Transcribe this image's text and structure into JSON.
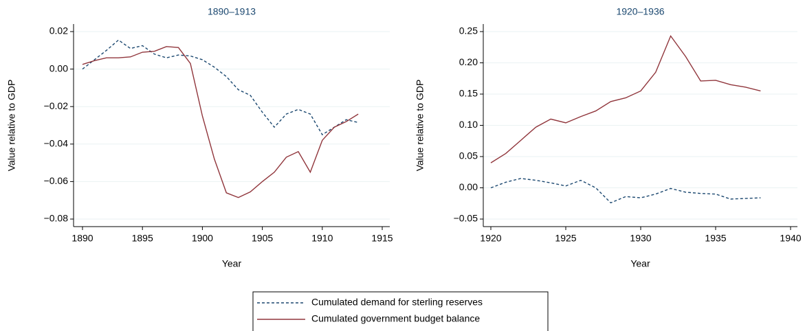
{
  "chart_data": [
    {
      "type": "line",
      "title": "1890–1913",
      "xlabel": "Year",
      "ylabel": "Value relative to GDP",
      "x": [
        1890,
        1891,
        1892,
        1893,
        1894,
        1895,
        1896,
        1897,
        1898,
        1899,
        1900,
        1901,
        1902,
        1903,
        1904,
        1905,
        1906,
        1907,
        1908,
        1909,
        1910,
        1911,
        1912,
        1913
      ],
      "series": [
        {
          "name": "Cumulated demand for sterling reserves",
          "color": "#1a476f",
          "dash": true,
          "values": [
            0.0,
            0.005,
            0.01,
            0.0155,
            0.011,
            0.0125,
            0.008,
            0.006,
            0.0075,
            0.007,
            0.005,
            0.001,
            -0.004,
            -0.011,
            -0.014,
            -0.023,
            -0.031,
            -0.024,
            -0.0215,
            -0.024,
            -0.035,
            -0.031,
            -0.027,
            -0.0285
          ]
        },
        {
          "name": "Cumulated government budget balance",
          "color": "#90353b",
          "dash": false,
          "values": [
            0.0025,
            0.0045,
            0.006,
            0.006,
            0.0065,
            0.009,
            0.0095,
            0.012,
            0.0115,
            0.003,
            -0.025,
            -0.048,
            -0.066,
            -0.0685,
            -0.0655,
            -0.06,
            -0.055,
            -0.047,
            -0.044,
            -0.055,
            -0.038,
            -0.031,
            -0.028,
            -0.024
          ]
        }
      ],
      "xlim": [
        1890,
        1915
      ],
      "xticks": [
        1890,
        1895,
        1900,
        1905,
        1910,
        1915
      ],
      "ylim": [
        -0.08,
        0.02
      ],
      "yticks": [
        0.02,
        {
          "value": 0,
          "label": "0.00"
        },
        {
          "value": -0.02,
          "label": "−0.02"
        },
        {
          "value": -0.04,
          "label": "−0.04"
        },
        {
          "value": -0.06,
          "label": "−0.06"
        },
        {
          "value": -0.08,
          "label": "−0.08"
        }
      ],
      "grid": true
    },
    {
      "type": "line",
      "title": "1920–1936",
      "xlabel": "Year",
      "ylabel": "Value relative to GDP",
      "x": [
        1920,
        1921,
        1922,
        1923,
        1924,
        1925,
        1926,
        1927,
        1928,
        1929,
        1930,
        1931,
        1932,
        1933,
        1934,
        1935,
        1936,
        1937,
        1938
      ],
      "series": [
        {
          "color": "#1a476f",
          "dash": true,
          "values": [
            0.0,
            0.009,
            0.015,
            0.012,
            0.008,
            0.003,
            0.012,
            0.0,
            -0.024,
            -0.014,
            -0.016,
            -0.01,
            -0.001,
            -0.007,
            -0.009,
            -0.01,
            -0.018,
            -0.017,
            -0.016
          ]
        },
        {
          "color": "#90353b",
          "dash": false,
          "values": [
            0.04,
            0.055,
            0.076,
            0.097,
            0.11,
            0.104,
            0.114,
            0.123,
            0.138,
            0.144,
            0.155,
            0.185,
            0.243,
            0.21,
            0.171,
            0.172,
            0.165,
            0.161,
            0.155
          ]
        }
      ],
      "xlim": [
        1920,
        1940
      ],
      "xticks": [
        1920,
        1925,
        1930,
        1935,
        1940
      ],
      "ylim": [
        -0.05,
        0.25
      ],
      "yticks": [
        0.25,
        {
          "value": 0.2,
          "label": "0.20"
        },
        0.15,
        {
          "value": 0.1,
          "label": "0.10"
        },
        0.05,
        {
          "value": 0,
          "label": "0.00"
        },
        {
          "value": -0.05,
          "label": "−0.05"
        }
      ],
      "grid": true
    }
  ]
}
